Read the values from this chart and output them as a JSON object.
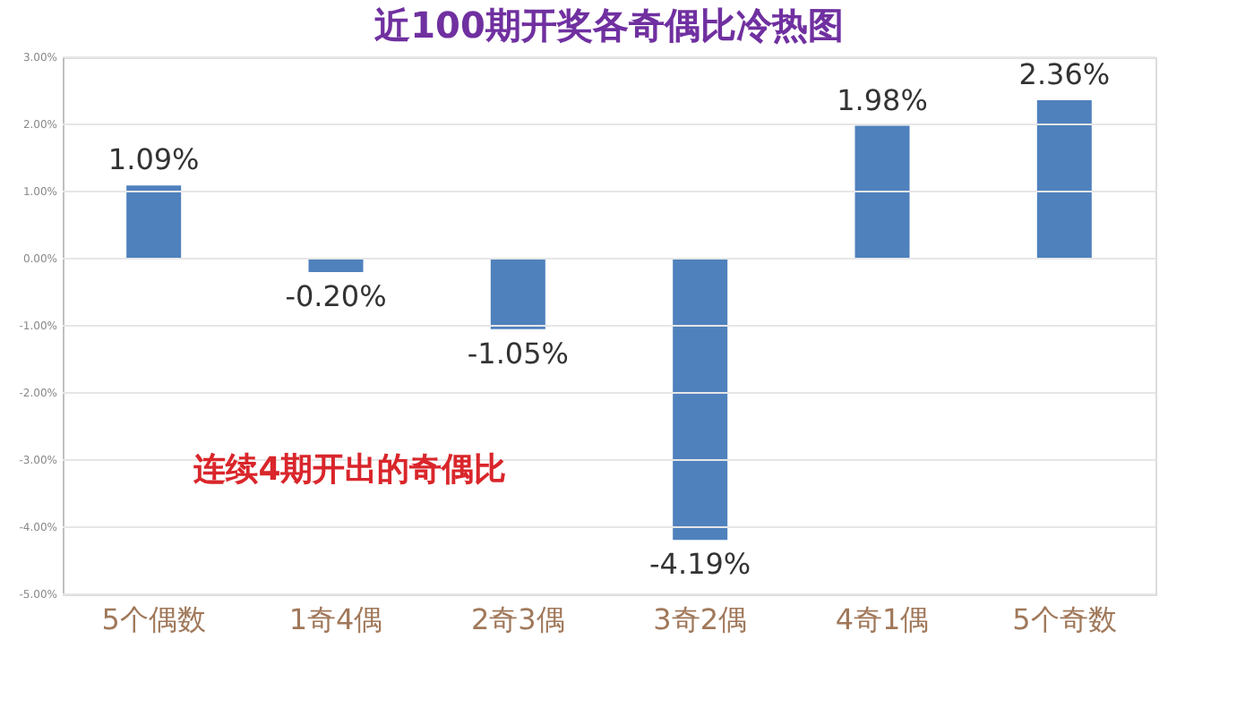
{
  "chart_data": {
    "type": "bar",
    "title": "近100期开奖各奇偶比冷热图",
    "categories": [
      "5个偶数",
      "1奇4偶",
      "2奇3偶",
      "3奇2偶",
      "4奇1偶",
      "5个奇数"
    ],
    "values": [
      1.09,
      -0.2,
      -1.05,
      -4.19,
      1.98,
      2.36
    ],
    "color": "#4f81bd",
    "ylim": [
      -5,
      3
    ],
    "yticks": [
      {
        "value": 3,
        "label": "3.00%"
      },
      {
        "value": 2,
        "label": "2.00%"
      },
      {
        "value": 1,
        "label": "1.00%"
      },
      {
        "value": 0,
        "label": "0.00%"
      },
      {
        "value": -1,
        "label": "-1.00%"
      },
      {
        "value": -2,
        "label": "-2.00%"
      },
      {
        "value": -3,
        "label": "-3.00%"
      },
      {
        "value": -4,
        "label": "-4.00%"
      },
      {
        "value": -5,
        "label": "-5.00%"
      }
    ],
    "value_labels": [
      "1.09%",
      "-0.20%",
      "-1.05%",
      "-4.19%",
      "1.98%",
      "2.36%"
    ],
    "annotations": [
      "连续4期开出的奇偶比"
    ],
    "grid": "y"
  }
}
